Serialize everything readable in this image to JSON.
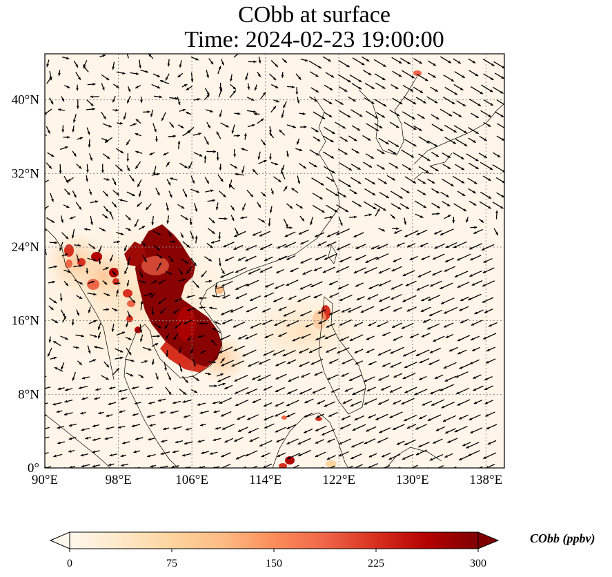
{
  "title": {
    "line1": "CObb at surface",
    "line2": "Time: 2024-02-23 19:00:00"
  },
  "map": {
    "projection": "PlateCarree",
    "lon_range": [
      90,
      140
    ],
    "lat_range": [
      0,
      45
    ],
    "x_tick_labels": [
      "90°E",
      "98°E",
      "106°E",
      "114°E",
      "122°E",
      "130°E",
      "138°E"
    ],
    "y_tick_labels": [
      "0°",
      "8°N",
      "16°N",
      "24°N",
      "32°N",
      "40°N"
    ],
    "x_tick_values": [
      90,
      98,
      106,
      114,
      122,
      130,
      138
    ],
    "y_tick_values": [
      0,
      8,
      16,
      24,
      32,
      40
    ],
    "gridlines": "dotted gray",
    "field": "CObb surface concentration",
    "overlay": "wind vectors (black arrows)",
    "hotspots": [
      {
        "region": "Indochina (Laos/Thailand/Cambodia)",
        "lon_range": [
          100,
          108
        ],
        "lat_range": [
          12,
          27
        ],
        "level": "above 300 ppbv"
      },
      {
        "region": "Northern Myanmar",
        "lon_range": [
          92,
          96
        ],
        "lat_range": [
          21,
          25
        ],
        "level": "moderate"
      },
      {
        "region": "Luzon",
        "lon_range": [
          120,
          121
        ],
        "lat_range": [
          16,
          18
        ],
        "level": "high"
      },
      {
        "region": "Borneo",
        "lon_range": [
          115,
          118
        ],
        "lat_range": [
          0,
          2
        ],
        "level": "high"
      },
      {
        "region": "Primorye",
        "lon_range": [
          130,
          131
        ],
        "lat_range": [
          42,
          43
        ],
        "level": "moderate"
      }
    ]
  },
  "colorbar": {
    "label": "CObb (ppbv)",
    "ticks": [
      "0",
      "75",
      "150",
      "225",
      "300"
    ],
    "tick_values": [
      0,
      75,
      150,
      225,
      300
    ],
    "min": 0,
    "max": 300,
    "extend": "both",
    "colormap": "OrRd",
    "colors": [
      "#fff7ec",
      "#fee8c8",
      "#fdd49e",
      "#fdbb84",
      "#fc8d59",
      "#ef6548",
      "#d7301f",
      "#b30000",
      "#7f0000"
    ]
  }
}
